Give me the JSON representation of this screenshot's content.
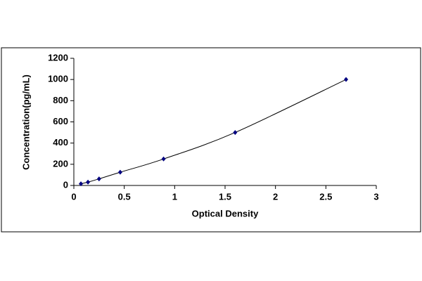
{
  "chart_data": {
    "type": "scatter",
    "x_label": "Optical Density",
    "y_label": "Concentration(pg/mL)",
    "x": [
      0.07,
      0.14,
      0.25,
      0.46,
      0.89,
      1.6,
      2.7
    ],
    "values": [
      15.6,
      31.25,
      62.5,
      125,
      250,
      500,
      1000
    ],
    "color": "#000080",
    "line_color": "#000000",
    "smooth_line": true,
    "xlim": [
      0,
      3
    ],
    "xticks": [
      0,
      0.5,
      1,
      1.5,
      2,
      2.5,
      3
    ],
    "ylim": [
      0,
      1200
    ],
    "yticks": [
      0,
      200,
      400,
      600,
      800,
      1000,
      1200
    ]
  }
}
